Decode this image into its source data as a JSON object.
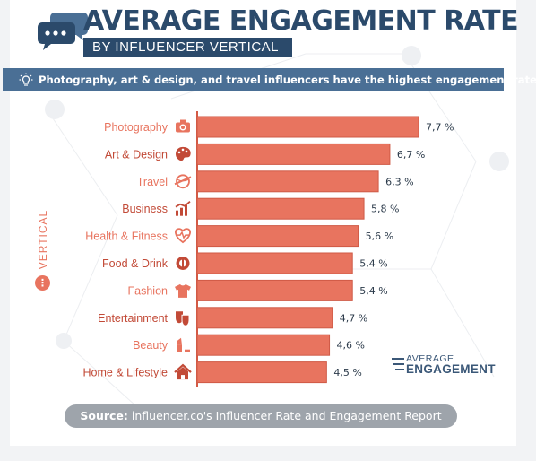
{
  "header": {
    "title": "AVERAGE ENGAGEMENT RATE",
    "subtitle": "BY INFLUENCER VERTICAL"
  },
  "banner": {
    "text": "Photography, art & design, and travel influencers have the highest engagement rates."
  },
  "axis_label": "VERTICAL",
  "brand": {
    "line1": "AVERAGE",
    "line2": "ENGAGEMENT"
  },
  "source": {
    "label": "Source:",
    "text": "influencer.co's Influencer Rate and Engagement Report"
  },
  "colors": {
    "bar": "#e8745f",
    "bar_dark": "#cf5a46",
    "label_text": "#e8745f",
    "dark_text": "#c24a37",
    "navy": "#2b4a6b",
    "banner": "#4a6f95"
  },
  "chart_data": {
    "type": "bar",
    "orientation": "horizontal",
    "value_suffix": " %",
    "categories": [
      "Photography",
      "Art & Design",
      "Travel",
      "Business",
      "Health & Fitness",
      "Food & Drink",
      "Fashion",
      "Entertainment",
      "Beauty",
      "Home & Lifestyle"
    ],
    "values": [
      7.7,
      6.7,
      6.3,
      5.8,
      5.6,
      5.4,
      5.4,
      4.7,
      4.6,
      4.5
    ],
    "data_labels": [
      "7,7 %",
      "6,7 %",
      "6,3 %",
      "5,8 %",
      "5,6 %",
      "5,4 %",
      "5,4 %",
      "4,7 %",
      "4,6 %",
      "4,5 %"
    ],
    "icons": [
      "camera-icon",
      "palette-icon",
      "globe-plane-icon",
      "chart-up-icon",
      "heartbeat-icon",
      "plate-cutlery-icon",
      "tshirt-icon",
      "theater-masks-icon",
      "lipstick-icon",
      "house-icon"
    ],
    "label_tone": [
      "light",
      "dark",
      "light",
      "dark",
      "light",
      "dark",
      "light",
      "dark",
      "light",
      "dark"
    ],
    "xlim": [
      0,
      7.7
    ],
    "ylabel": "VERTICAL",
    "grid": false,
    "legend": "none"
  }
}
